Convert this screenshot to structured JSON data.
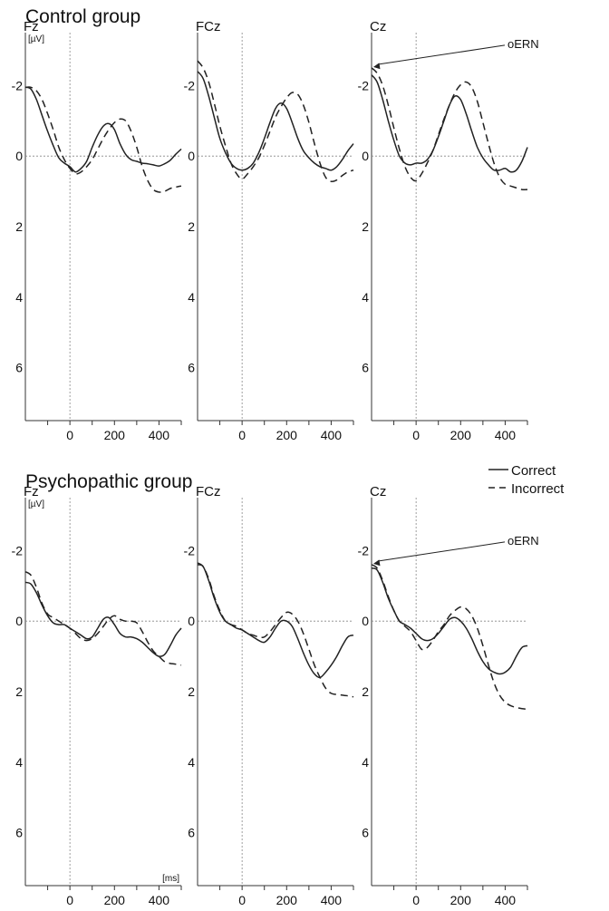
{
  "chart_data": [
    {
      "type": "line",
      "group": "Control group",
      "title": "Fz",
      "unit_y": "[µV]",
      "unit_x": "",
      "xlim": [
        -200,
        500
      ],
      "ylim": [
        -3.5,
        7.5
      ],
      "y_inverted": true,
      "y_ticks": [
        "-2",
        "0",
        "2",
        "4",
        "6"
      ],
      "x_ticks": [
        "0",
        "200",
        "400"
      ],
      "series": [
        {
          "name": "Correct",
          "style": "solid",
          "x": [
            -200,
            -175,
            -150,
            -125,
            -100,
            -75,
            -50,
            -25,
            0,
            25,
            50,
            75,
            100,
            125,
            150,
            175,
            200,
            225,
            250,
            275,
            300,
            325,
            350,
            375,
            400,
            425,
            450,
            475,
            500
          ],
          "y": [
            -1.95,
            -1.9,
            -1.6,
            -1.15,
            -0.7,
            -0.3,
            0.05,
            0.2,
            0.3,
            0.45,
            0.35,
            0.15,
            -0.25,
            -0.6,
            -0.85,
            -0.92,
            -0.75,
            -0.35,
            -0.05,
            0.1,
            0.15,
            0.2,
            0.22,
            0.25,
            0.28,
            0.22,
            0.12,
            -0.05,
            -0.2
          ]
        },
        {
          "name": "Incorrect",
          "style": "dashed",
          "x": [
            -200,
            -175,
            -150,
            -125,
            -100,
            -75,
            -50,
            -25,
            0,
            25,
            50,
            75,
            100,
            125,
            150,
            175,
            200,
            225,
            250,
            275,
            300,
            325,
            350,
            375,
            400,
            425,
            450,
            475,
            500
          ],
          "y": [
            -1.95,
            -1.95,
            -1.85,
            -1.6,
            -1.2,
            -0.75,
            -0.25,
            0.1,
            0.35,
            0.5,
            0.45,
            0.3,
            0.1,
            -0.2,
            -0.5,
            -0.75,
            -0.95,
            -1.05,
            -1.0,
            -0.7,
            -0.25,
            0.3,
            0.7,
            0.95,
            1.02,
            1.0,
            0.92,
            0.88,
            0.85
          ]
        }
      ]
    },
    {
      "type": "line",
      "group": "Control group",
      "title": "FCz",
      "unit_y": "",
      "unit_x": "",
      "xlim": [
        -200,
        500
      ],
      "ylim": [
        -3.5,
        7.5
      ],
      "y_inverted": true,
      "y_ticks": [
        "-2",
        "0",
        "2",
        "4",
        "6"
      ],
      "x_ticks": [
        "0",
        "200",
        "400"
      ],
      "series": [
        {
          "name": "Correct",
          "style": "solid",
          "x": [
            -200,
            -175,
            -150,
            -125,
            -100,
            -75,
            -50,
            -25,
            0,
            25,
            50,
            75,
            100,
            125,
            150,
            175,
            200,
            225,
            250,
            275,
            300,
            325,
            350,
            375,
            400,
            425,
            450,
            475,
            500
          ],
          "y": [
            -2.4,
            -2.2,
            -1.7,
            -1.1,
            -0.5,
            -0.1,
            0.2,
            0.35,
            0.4,
            0.35,
            0.2,
            -0.1,
            -0.5,
            -0.95,
            -1.35,
            -1.5,
            -1.35,
            -0.95,
            -0.5,
            -0.15,
            0.05,
            0.2,
            0.3,
            0.35,
            0.4,
            0.3,
            0.1,
            -0.15,
            -0.35
          ]
        },
        {
          "name": "Incorrect",
          "style": "dashed",
          "x": [
            -200,
            -175,
            -150,
            -125,
            -100,
            -75,
            -50,
            -25,
            0,
            25,
            50,
            75,
            100,
            125,
            150,
            175,
            200,
            225,
            250,
            275,
            300,
            325,
            350,
            375,
            400,
            425,
            450,
            475,
            500
          ],
          "y": [
            -2.7,
            -2.5,
            -2.1,
            -1.5,
            -0.85,
            -0.3,
            0.2,
            0.5,
            0.65,
            0.5,
            0.3,
            0.05,
            -0.3,
            -0.7,
            -1.1,
            -1.4,
            -1.65,
            -1.8,
            -1.75,
            -1.45,
            -0.95,
            -0.35,
            0.2,
            0.6,
            0.72,
            0.68,
            0.55,
            0.45,
            0.4
          ]
        }
      ]
    },
    {
      "type": "line",
      "group": "Control group",
      "title": "Cz",
      "unit_y": "",
      "unit_x": "",
      "xlim": [
        -200,
        500
      ],
      "ylim": [
        -3.5,
        7.5
      ],
      "y_inverted": true,
      "y_ticks": [
        "-2",
        "0",
        "2",
        "4",
        "6"
      ],
      "x_ticks": [
        "0",
        "200",
        "400"
      ],
      "annotation": "oERN",
      "series": [
        {
          "name": "Correct",
          "style": "solid",
          "x": [
            -200,
            -175,
            -150,
            -125,
            -100,
            -75,
            -50,
            -25,
            0,
            25,
            50,
            75,
            100,
            125,
            150,
            175,
            200,
            225,
            250,
            275,
            300,
            325,
            350,
            375,
            400,
            425,
            450,
            475,
            500
          ],
          "y": [
            -2.3,
            -2.1,
            -1.6,
            -1.0,
            -0.45,
            0.0,
            0.2,
            0.25,
            0.2,
            0.2,
            0.1,
            -0.15,
            -0.55,
            -1.0,
            -1.45,
            -1.7,
            -1.6,
            -1.2,
            -0.7,
            -0.25,
            0.05,
            0.25,
            0.4,
            0.4,
            0.35,
            0.45,
            0.4,
            0.15,
            -0.25
          ]
        },
        {
          "name": "Incorrect",
          "style": "dashed",
          "x": [
            -200,
            -175,
            -150,
            -125,
            -100,
            -75,
            -50,
            -25,
            0,
            25,
            50,
            75,
            100,
            125,
            150,
            175,
            200,
            225,
            250,
            275,
            300,
            325,
            350,
            375,
            400,
            425,
            450,
            475,
            500
          ],
          "y": [
            -2.5,
            -2.35,
            -2.0,
            -1.45,
            -0.8,
            -0.2,
            0.3,
            0.6,
            0.7,
            0.5,
            0.2,
            -0.15,
            -0.6,
            -1.05,
            -1.45,
            -1.8,
            -2.02,
            -2.1,
            -1.95,
            -1.55,
            -0.95,
            -0.35,
            0.2,
            0.6,
            0.8,
            0.85,
            0.9,
            0.95,
            0.95
          ]
        }
      ]
    },
    {
      "type": "line",
      "group": "Psychopathic group",
      "title": "Fz",
      "unit_y": "[µV]",
      "unit_x": "[ms]",
      "xlim": [
        -200,
        500
      ],
      "ylim": [
        -3.5,
        7.5
      ],
      "y_inverted": true,
      "y_ticks": [
        "-2",
        "0",
        "2",
        "4",
        "6"
      ],
      "x_ticks": [
        "0",
        "200",
        "400"
      ],
      "series": [
        {
          "name": "Correct",
          "style": "solid",
          "x": [
            -200,
            -175,
            -150,
            -125,
            -100,
            -75,
            -50,
            -25,
            0,
            25,
            50,
            75,
            100,
            125,
            150,
            175,
            200,
            225,
            250,
            275,
            300,
            325,
            350,
            375,
            400,
            425,
            450,
            475,
            500
          ],
          "y": [
            -1.1,
            -1.05,
            -0.8,
            -0.45,
            -0.15,
            0.05,
            0.1,
            0.1,
            0.2,
            0.3,
            0.4,
            0.5,
            0.45,
            0.2,
            -0.05,
            -0.1,
            0.1,
            0.35,
            0.45,
            0.45,
            0.5,
            0.6,
            0.75,
            0.9,
            1.0,
            0.95,
            0.7,
            0.4,
            0.2
          ]
        },
        {
          "name": "Incorrect",
          "style": "dashed",
          "x": [
            -200,
            -175,
            -150,
            -125,
            -100,
            -75,
            -50,
            -25,
            0,
            25,
            50,
            75,
            100,
            125,
            150,
            175,
            200,
            225,
            250,
            275,
            300,
            325,
            350,
            375,
            400,
            425,
            450,
            475,
            500
          ],
          "y": [
            -1.4,
            -1.3,
            -0.95,
            -0.5,
            -0.2,
            -0.1,
            0.0,
            0.1,
            0.2,
            0.35,
            0.5,
            0.55,
            0.5,
            0.35,
            0.15,
            -0.05,
            -0.15,
            -0.05,
            0.0,
            0.0,
            0.05,
            0.3,
            0.6,
            0.85,
            1.0,
            1.15,
            1.2,
            1.22,
            1.25
          ]
        }
      ]
    },
    {
      "type": "line",
      "group": "Psychopathic group",
      "title": "FCz",
      "unit_y": "",
      "unit_x": "",
      "xlim": [
        -200,
        500
      ],
      "ylim": [
        -3.5,
        7.5
      ],
      "y_inverted": true,
      "y_ticks": [
        "-2",
        "0",
        "2",
        "4",
        "6"
      ],
      "x_ticks": [
        "0",
        "200",
        "400"
      ],
      "series": [
        {
          "name": "Correct",
          "style": "solid",
          "x": [
            -200,
            -175,
            -150,
            -125,
            -100,
            -75,
            -50,
            -25,
            0,
            25,
            50,
            75,
            100,
            125,
            150,
            175,
            200,
            225,
            250,
            275,
            300,
            325,
            350,
            375,
            400,
            425,
            450,
            475,
            500
          ],
          "y": [
            -1.6,
            -1.55,
            -1.15,
            -0.65,
            -0.25,
            0.0,
            0.1,
            0.2,
            0.25,
            0.35,
            0.45,
            0.55,
            0.6,
            0.45,
            0.2,
            0.0,
            0.0,
            0.15,
            0.5,
            0.9,
            1.25,
            1.5,
            1.6,
            1.45,
            1.25,
            1.0,
            0.7,
            0.45,
            0.4
          ]
        },
        {
          "name": "Incorrect",
          "style": "dashed",
          "x": [
            -200,
            -175,
            -150,
            -125,
            -100,
            -75,
            -50,
            -25,
            0,
            25,
            50,
            75,
            100,
            125,
            150,
            175,
            200,
            225,
            250,
            275,
            300,
            325,
            350,
            375,
            400,
            425,
            450,
            475,
            500
          ],
          "y": [
            -1.65,
            -1.55,
            -1.2,
            -0.7,
            -0.3,
            0.0,
            0.1,
            0.15,
            0.25,
            0.35,
            0.4,
            0.45,
            0.45,
            0.3,
            0.1,
            -0.1,
            -0.25,
            -0.2,
            0.0,
            0.35,
            0.8,
            1.25,
            1.6,
            1.9,
            2.05,
            2.08,
            2.1,
            2.12,
            2.15
          ]
        }
      ]
    },
    {
      "type": "line",
      "group": "Psychopathic group",
      "title": "Cz",
      "unit_y": "",
      "unit_x": "",
      "xlim": [
        -200,
        500
      ],
      "ylim": [
        -3.5,
        7.5
      ],
      "y_inverted": true,
      "y_ticks": [
        "-2",
        "0",
        "2",
        "4",
        "6"
      ],
      "x_ticks": [
        "0",
        "200",
        "400"
      ],
      "annotation": "oERN",
      "series": [
        {
          "name": "Correct",
          "style": "solid",
          "x": [
            -200,
            -175,
            -150,
            -125,
            -100,
            -75,
            -50,
            -25,
            0,
            25,
            50,
            75,
            100,
            125,
            150,
            175,
            200,
            225,
            250,
            275,
            300,
            325,
            350,
            375,
            400,
            425,
            450,
            475,
            500
          ],
          "y": [
            -1.5,
            -1.45,
            -1.1,
            -0.65,
            -0.3,
            0.0,
            0.1,
            0.2,
            0.35,
            0.5,
            0.55,
            0.5,
            0.35,
            0.15,
            -0.05,
            -0.1,
            0.0,
            0.2,
            0.5,
            0.85,
            1.15,
            1.35,
            1.45,
            1.5,
            1.45,
            1.3,
            1.0,
            0.75,
            0.7
          ]
        },
        {
          "name": "Incorrect",
          "style": "dashed",
          "x": [
            -200,
            -175,
            -150,
            -125,
            -100,
            -75,
            -50,
            -25,
            0,
            25,
            50,
            75,
            100,
            125,
            150,
            175,
            200,
            225,
            250,
            275,
            300,
            325,
            350,
            375,
            400,
            425,
            450,
            475,
            500
          ],
          "y": [
            -1.6,
            -1.5,
            -1.15,
            -0.7,
            -0.3,
            0.0,
            0.15,
            0.3,
            0.55,
            0.8,
            0.75,
            0.55,
            0.3,
            0.1,
            -0.15,
            -0.3,
            -0.4,
            -0.35,
            -0.15,
            0.2,
            0.7,
            1.25,
            1.75,
            2.1,
            2.3,
            2.4,
            2.45,
            2.48,
            2.5
          ]
        }
      ]
    }
  ],
  "groups": [
    "Control group",
    "Psychopathic group"
  ],
  "legend": {
    "correct": "Correct",
    "incorrect": "Incorrect"
  },
  "colors": {
    "line": "#222222",
    "axis": "#333333",
    "grid": "#888888"
  }
}
